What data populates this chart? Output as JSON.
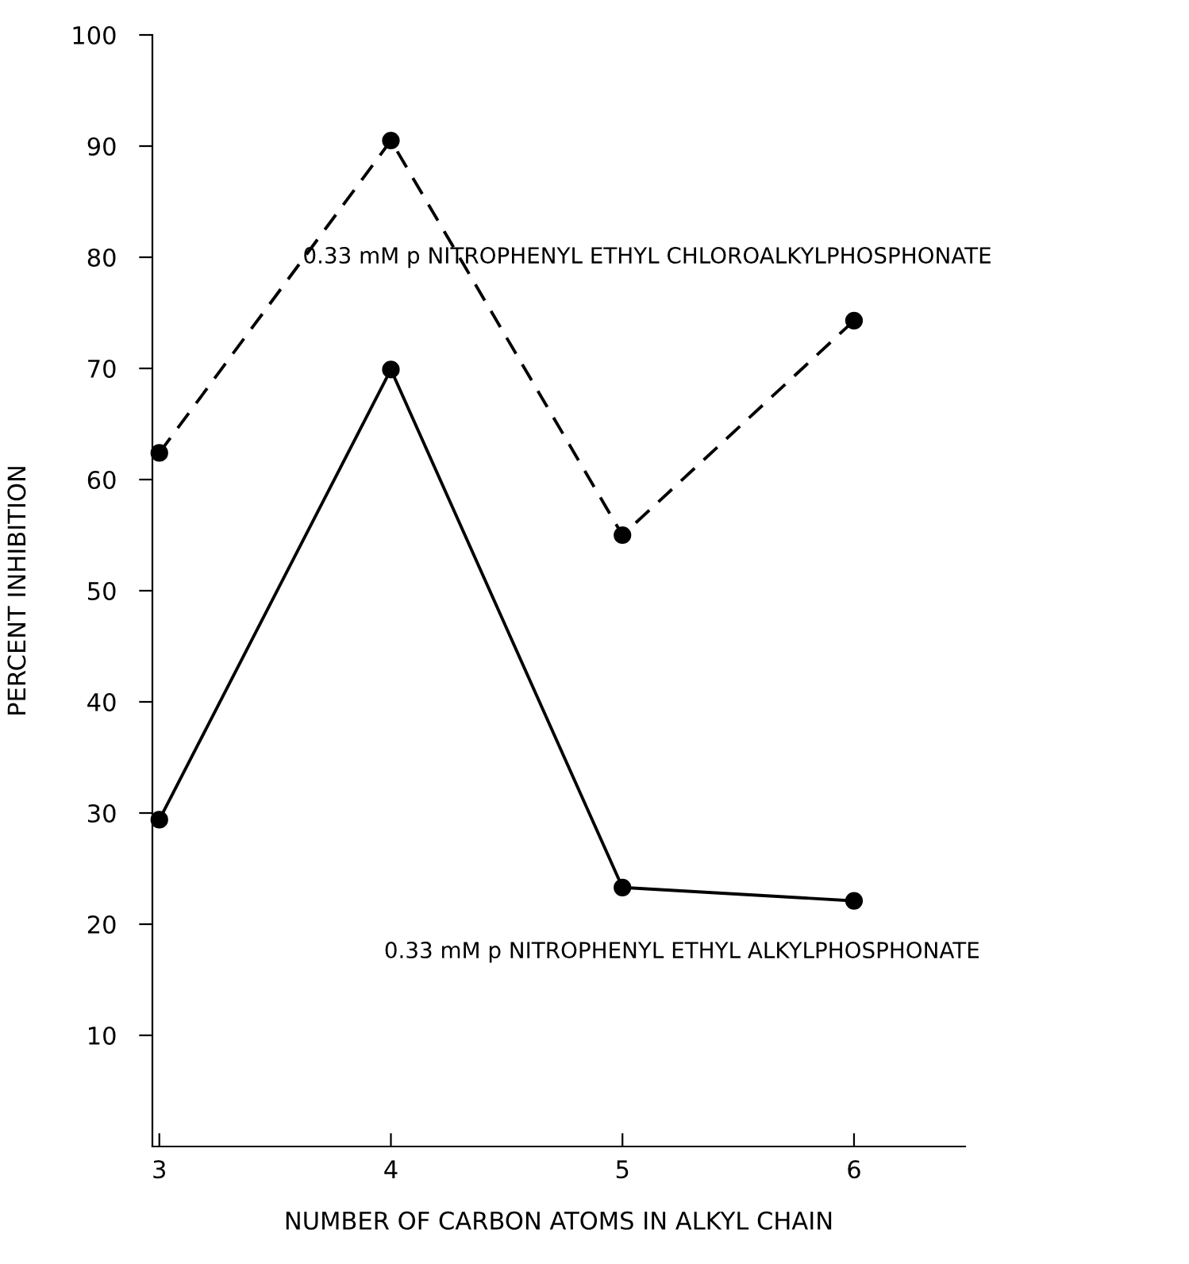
{
  "chart_data": {
    "type": "line",
    "xlabel": "NUMBER OF CARBON ATOMS IN ALKYL CHAIN",
    "ylabel": "PERCENT INHIBITION",
    "xlim": [
      2.97,
      6.48
    ],
    "xticks": [
      3,
      4,
      5,
      6
    ],
    "ylim": [
      0,
      100
    ],
    "yticks": [
      10,
      20,
      30,
      40,
      50,
      60,
      70,
      80,
      90,
      100
    ],
    "marker": "circle",
    "grid": false,
    "legend": false,
    "series": [
      {
        "name": "0.33 mM p NITROPHENYL ETHYL CHLOROALKYLPHOSPHONATE",
        "color": "#000000",
        "line_style": "dashed",
        "x": [
          3,
          4,
          5,
          6
        ],
        "values": [
          62.4,
          90.5,
          55.0,
          74.3
        ]
      },
      {
        "name": "0.33 mM p NITROPHENYL ETHYL ALKYLPHOSPHONATE",
        "color": "#000000",
        "line_style": "solid",
        "x": [
          3,
          4,
          5,
          6
        ],
        "values": [
          29.4,
          69.9,
          23.3,
          22.1
        ]
      }
    ]
  }
}
